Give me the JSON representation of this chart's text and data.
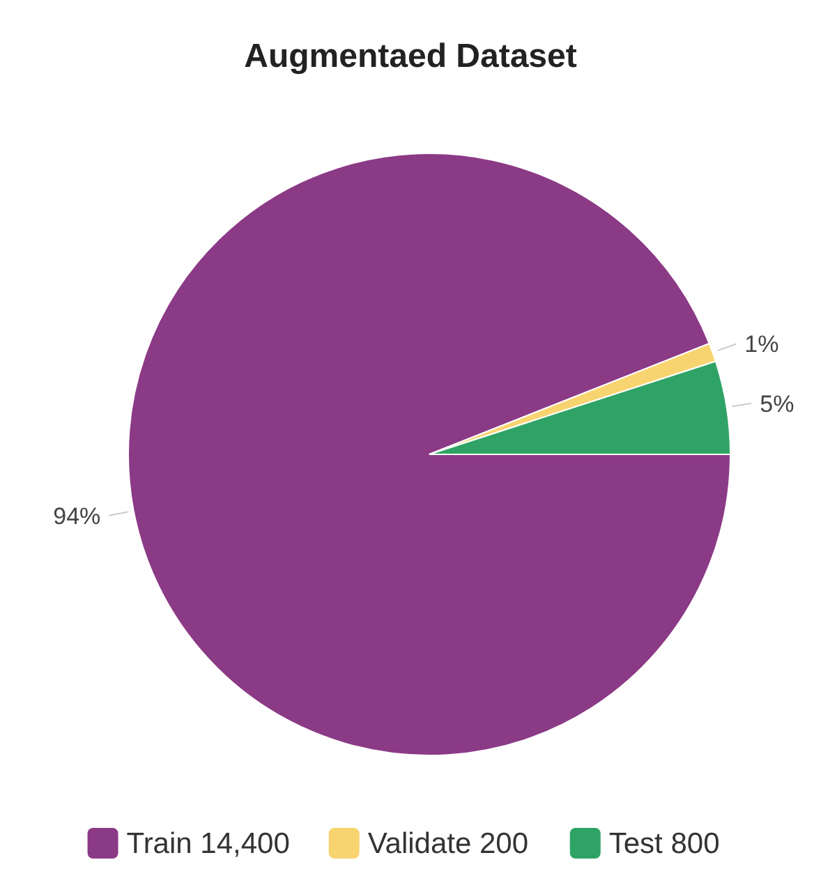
{
  "chart_data": {
    "type": "pie",
    "title": "Augmentaed Dataset",
    "categories": [
      "Train 14,400",
      "Validate 200",
      "Test 800"
    ],
    "values": [
      94,
      1,
      5
    ],
    "value_labels": [
      "94%",
      "1%",
      "5%"
    ],
    "colors": [
      "#8b3a86",
      "#f8d470",
      "#2fa365"
    ],
    "legend": "bottom"
  }
}
